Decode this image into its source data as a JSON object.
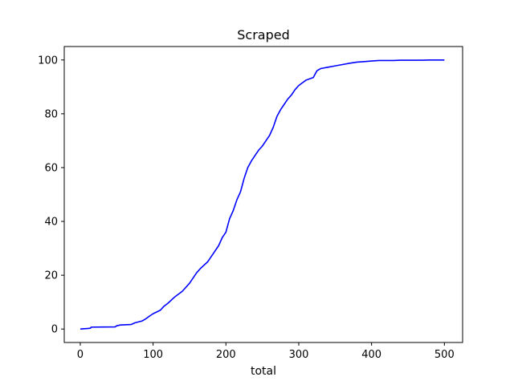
{
  "chart_data": {
    "type": "line",
    "title": "Scraped",
    "xlabel": "total",
    "ylabel": "",
    "xlim": [
      -22,
      525
    ],
    "ylim": [
      -5,
      105
    ],
    "x_ticks": [
      0,
      100,
      200,
      300,
      400,
      500
    ],
    "y_ticks": [
      0,
      20,
      40,
      60,
      80,
      100
    ],
    "grid": false,
    "series": [
      {
        "color": "#0000ff",
        "points": [
          [
            0,
            0
          ],
          [
            10,
            0.2
          ],
          [
            14,
            0.3
          ],
          [
            15,
            0.7
          ],
          [
            48,
            0.8
          ],
          [
            50,
            1.2
          ],
          [
            55,
            1.5
          ],
          [
            70,
            1.7
          ],
          [
            75,
            2.3
          ],
          [
            85,
            3.0
          ],
          [
            90,
            3.8
          ],
          [
            95,
            4.8
          ],
          [
            100,
            5.7
          ],
          [
            110,
            7.0
          ],
          [
            115,
            8.5
          ],
          [
            120,
            9.5
          ],
          [
            130,
            12.0
          ],
          [
            140,
            14.0
          ],
          [
            150,
            17.0
          ],
          [
            160,
            21.0
          ],
          [
            165,
            22.5
          ],
          [
            175,
            25.0
          ],
          [
            180,
            27.0
          ],
          [
            190,
            31.0
          ],
          [
            195,
            34.0
          ],
          [
            200,
            36.0
          ],
          [
            205,
            41.0
          ],
          [
            210,
            44.0
          ],
          [
            215,
            48.0
          ],
          [
            220,
            51.0
          ],
          [
            225,
            56.0
          ],
          [
            230,
            60.0
          ],
          [
            235,
            62.5
          ],
          [
            240,
            64.5
          ],
          [
            245,
            66.5
          ],
          [
            250,
            68.0
          ],
          [
            255,
            70.0
          ],
          [
            260,
            72.0
          ],
          [
            265,
            75.0
          ],
          [
            270,
            79.0
          ],
          [
            275,
            81.5
          ],
          [
            280,
            83.5
          ],
          [
            285,
            85.5
          ],
          [
            290,
            87.0
          ],
          [
            295,
            89.0
          ],
          [
            300,
            90.5
          ],
          [
            305,
            91.5
          ],
          [
            310,
            92.5
          ],
          [
            320,
            93.5
          ],
          [
            325,
            96.0
          ],
          [
            330,
            96.8
          ],
          [
            340,
            97.3
          ],
          [
            350,
            97.8
          ],
          [
            360,
            98.3
          ],
          [
            370,
            98.8
          ],
          [
            380,
            99.2
          ],
          [
            390,
            99.4
          ],
          [
            400,
            99.6
          ],
          [
            410,
            99.8
          ],
          [
            430,
            99.8
          ],
          [
            440,
            99.9
          ],
          [
            470,
            99.9
          ],
          [
            480,
            100
          ],
          [
            500,
            100
          ]
        ]
      }
    ]
  }
}
